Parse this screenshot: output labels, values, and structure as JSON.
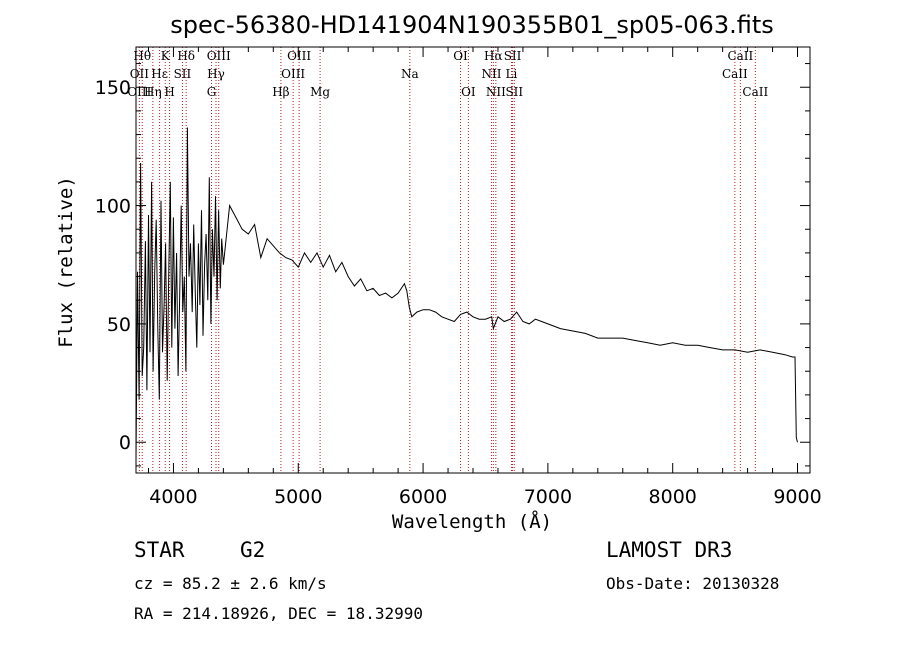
{
  "chart_data": {
    "type": "line",
    "title": "spec-56380-HD141904N190355B01_sp05-063.fits",
    "xlabel": "Wavelength (Å)",
    "ylabel": "Flux (relative)",
    "xlim": [
      3700,
      9100
    ],
    "ylim": [
      -13,
      167
    ],
    "xticks": [
      4000,
      5000,
      6000,
      7000,
      8000,
      9000
    ],
    "yticks": [
      0,
      50,
      100,
      150
    ],
    "series": [
      {
        "name": "flux",
        "x": [
          3700,
          3712,
          3725,
          3737,
          3750,
          3762,
          3775,
          3787,
          3800,
          3812,
          3825,
          3837,
          3850,
          3862,
          3875,
          3887,
          3900,
          3912,
          3925,
          3937,
          3950,
          3962,
          3975,
          3987,
          4000,
          4012,
          4025,
          4037,
          4050,
          4062,
          4075,
          4087,
          4100,
          4112,
          4125,
          4137,
          4150,
          4162,
          4175,
          4187,
          4200,
          4212,
          4225,
          4237,
          4250,
          4262,
          4275,
          4287,
          4300,
          4312,
          4325,
          4337,
          4350,
          4362,
          4375,
          4387,
          4400,
          4450,
          4500,
          4550,
          4600,
          4650,
          4700,
          4750,
          4800,
          4850,
          4900,
          4950,
          5000,
          5050,
          5100,
          5150,
          5200,
          5250,
          5300,
          5350,
          5400,
          5450,
          5500,
          5550,
          5600,
          5650,
          5700,
          5750,
          5800,
          5850,
          5870,
          5890,
          5910,
          5950,
          6000,
          6050,
          6100,
          6150,
          6200,
          6250,
          6300,
          6350,
          6400,
          6450,
          6500,
          6550,
          6563,
          6600,
          6650,
          6700,
          6750,
          6800,
          6850,
          6900,
          6950,
          7000,
          7100,
          7200,
          7300,
          7400,
          7500,
          7600,
          7700,
          7800,
          7900,
          8000,
          8100,
          8200,
          8300,
          8400,
          8500,
          8600,
          8700,
          8800,
          8900,
          8960,
          8980,
          8990,
          9000
        ],
        "y": [
          -8,
          72,
          18,
          118,
          28,
          40,
          85,
          22,
          96,
          38,
          110,
          30,
          72,
          94,
          48,
          18,
          102,
          38,
          58,
          84,
          26,
          70,
          110,
          40,
          95,
          48,
          80,
          28,
          62,
          100,
          55,
          70,
          30,
          133,
          70,
          84,
          55,
          92,
          63,
          40,
          84,
          58,
          98,
          45,
          75,
          88,
          60,
          112,
          50,
          90,
          70,
          104,
          60,
          98,
          65,
          86,
          75,
          100,
          95,
          90,
          88,
          92,
          78,
          86,
          83,
          80,
          78,
          77,
          74,
          80,
          76,
          80,
          74,
          79,
          72,
          76,
          70,
          66,
          69,
          64,
          65,
          62,
          63,
          61,
          63,
          67,
          64,
          57,
          53,
          55,
          56,
          56,
          55,
          53,
          52,
          51,
          54,
          55,
          53,
          52,
          52,
          53,
          48,
          53,
          51,
          52,
          55,
          51,
          50,
          52,
          51,
          50,
          48,
          47,
          46,
          44,
          44,
          44,
          43,
          42,
          41,
          42,
          41,
          41,
          40,
          39,
          39,
          38,
          39,
          38,
          37,
          36,
          36,
          2,
          0
        ]
      }
    ],
    "spectral_lines": [
      {
        "label": "Hθ",
        "x": 3750,
        "row": 1
      },
      {
        "label": "OII",
        "x": 3727,
        "row": 2
      },
      {
        "label": "OIII",
        "x": 3727,
        "row": 3
      },
      {
        "label": "K",
        "x": 3934,
        "row": 1
      },
      {
        "label": "Hε",
        "x": 3889,
        "row": 2
      },
      {
        "label": "Hη",
        "x": 3835,
        "row": 3
      },
      {
        "label": "H",
        "x": 3969,
        "row": 3
      },
      {
        "label": "Hδ",
        "x": 4102,
        "row": 1
      },
      {
        "label": "SII",
        "x": 4072,
        "row": 2
      },
      {
        "label": "OIII",
        "x": 4363,
        "row": 1
      },
      {
        "label": "Hγ",
        "x": 4341,
        "row": 2
      },
      {
        "label": "G",
        "x": 4305,
        "row": 3
      },
      {
        "label": "Hβ",
        "x": 4861,
        "row": 3
      },
      {
        "label": "OIII",
        "x": 5007,
        "row": 1
      },
      {
        "label": "OIII",
        "x": 4959,
        "row": 2
      },
      {
        "label": "Mg",
        "x": 5175,
        "row": 3
      },
      {
        "label": "Na",
        "x": 5894,
        "row": 2
      },
      {
        "label": "OI",
        "x": 6300,
        "row": 1
      },
      {
        "label": "OI",
        "x": 6363,
        "row": 3
      },
      {
        "label": "Hα",
        "x": 6563,
        "row": 1
      },
      {
        "label": "NII",
        "x": 6548,
        "row": 2
      },
      {
        "label": "NII",
        "x": 6583,
        "row": 3
      },
      {
        "label": "SII",
        "x": 6717,
        "row": 1
      },
      {
        "label": "Li",
        "x": 6708,
        "row": 2
      },
      {
        "label": "SII",
        "x": 6731,
        "row": 3
      },
      {
        "label": "CaII",
        "x": 8542,
        "row": 1
      },
      {
        "label": "CaII",
        "x": 8498,
        "row": 2
      },
      {
        "label": "CaII",
        "x": 8662,
        "row": 3
      }
    ]
  },
  "info": {
    "object_type": "STAR",
    "subclass": "G2",
    "survey": "LAMOST DR3",
    "cz": "cz = 85.2 ± 2.6 km/s",
    "obs_date": "Obs-Date: 20130328",
    "coords": "RA = 214.18926, DEC =  18.32990"
  },
  "colors": {
    "line": "#000000",
    "marker_line": "#b22222",
    "background": "#ffffff"
  }
}
